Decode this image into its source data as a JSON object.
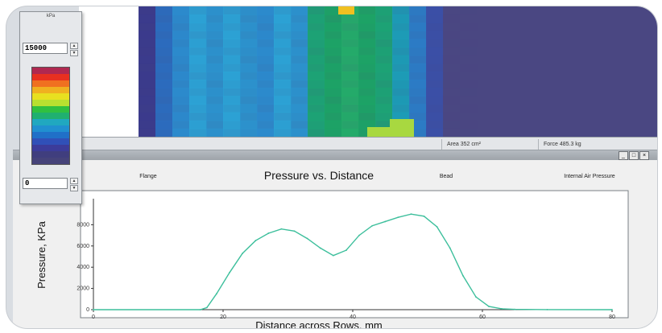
{
  "scale_panel": {
    "unit": "kPa",
    "max_value": "15000",
    "min_value": "0",
    "legend_colors": [
      "#b02850",
      "#e83020",
      "#f07020",
      "#f0b020",
      "#e8e020",
      "#b8e030",
      "#30c040",
      "#20b070",
      "#20a8c0",
      "#2090d0",
      "#2070c8",
      "#3050b8",
      "#3c3c9a",
      "#403e7e",
      "#46437a"
    ],
    "legend_labels": [
      "",
      "",
      "",
      "",
      "",
      "",
      "",
      "",
      "",
      "",
      "",
      "",
      "",
      "",
      ""
    ]
  },
  "status_bar": {
    "area": "Area 352 cm²",
    "force": "Force 485.3 kg"
  },
  "window_buttons": [
    "_",
    "□",
    "×"
  ],
  "chart_data": {
    "type": "line",
    "title": "Pressure vs. Distance",
    "xlabel": "Distance across Rows, mm",
    "ylabel": "Pressure, KPa",
    "xlim": [
      0,
      80
    ],
    "ylim": [
      0,
      10000
    ],
    "xticks": [
      "0",
      "20",
      "40",
      "60",
      "80"
    ],
    "xtick_values": [
      0,
      20,
      40,
      60,
      80
    ],
    "yticks": [
      "0",
      "2000",
      "4000",
      "6000",
      "8000"
    ],
    "ytick_values": [
      0,
      2000,
      4000,
      6000,
      8000
    ],
    "grid": false,
    "line_color": "#3dbf9c",
    "series": [
      {
        "x": [
          0,
          16.5,
          17.5,
          19,
          21,
          23,
          25,
          27,
          29,
          31,
          33,
          35,
          37,
          39,
          41,
          43,
          45,
          47,
          49,
          51,
          53,
          55,
          57,
          59,
          61,
          63,
          65,
          70,
          80
        ],
        "y": [
          0,
          0,
          200,
          1500,
          3500,
          5300,
          6500,
          7200,
          7600,
          7400,
          6700,
          5800,
          5100,
          5600,
          7000,
          7900,
          8300,
          8700,
          9000,
          8800,
          7800,
          5800,
          3200,
          1200,
          300,
          80,
          30,
          10,
          0
        ]
      }
    ],
    "annotations": [
      "Flange",
      "Bead",
      "Internal Air Pressure"
    ]
  },
  "heatmap": {
    "background": "#4a4782",
    "columns": [
      "#3a3a8c",
      "#2a6ec0",
      "#2a8ed0",
      "#2aa6d8",
      "#2a96d0",
      "#2aa6d8",
      "#2a96d0",
      "#2a8ed0",
      "#2aa6d8",
      "#2a96d0",
      "#1aa874",
      "#1aa864",
      "#22b068",
      "#1aa864",
      "#1aa874",
      "#1aa0b8",
      "#2a7ec8",
      "#3a50a8",
      "#4a4782",
      "#4a4782"
    ]
  }
}
